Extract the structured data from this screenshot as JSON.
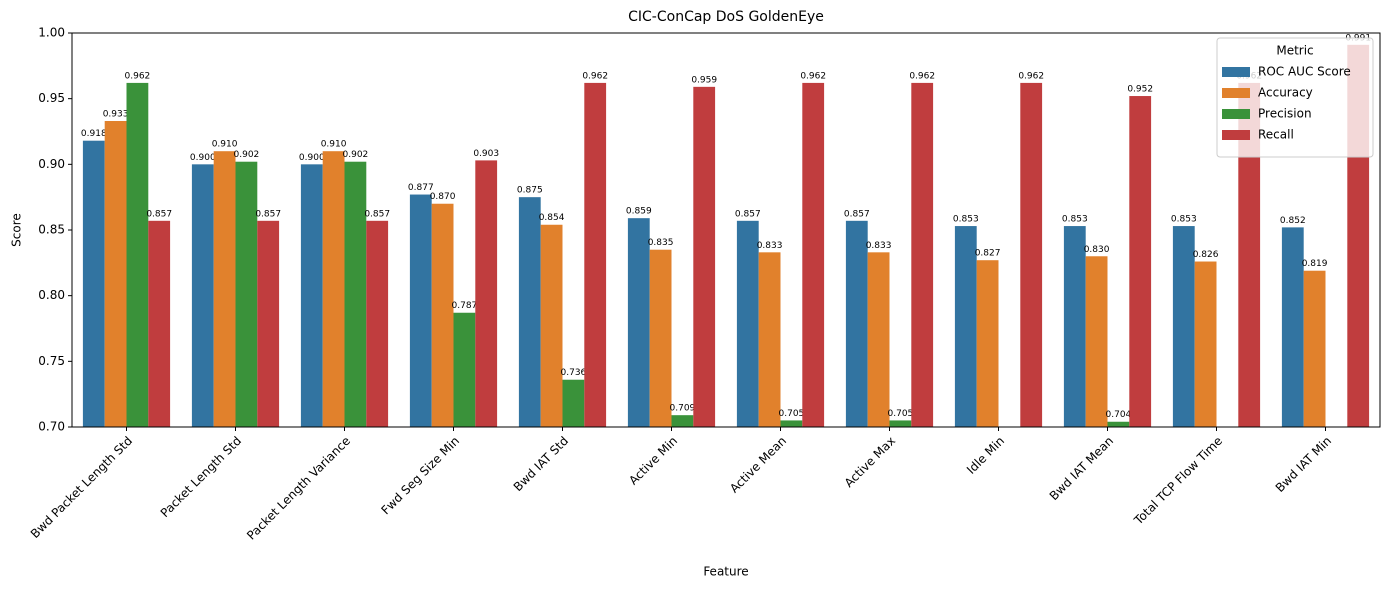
{
  "chart_data": {
    "type": "bar",
    "title": "CIC-ConCap DoS GoldenEye",
    "x_label": "Feature",
    "y_label": "Score",
    "legend_title": "Metric",
    "legend_position": "upper right",
    "categories": [
      "Bwd Packet Length Std",
      "Packet Length Std",
      "Packet Length Variance",
      "Fwd Seg Size Min",
      "Bwd IAT Std",
      "Active Min",
      "Active Mean",
      "Active Max",
      "Idle Min",
      "Bwd IAT Mean",
      "Total TCP Flow Time",
      "Bwd IAT Min"
    ],
    "series": [
      {
        "name": "ROC AUC Score",
        "color": "#3274a1",
        "values": [
          0.918,
          0.9,
          0.9,
          0.877,
          0.875,
          0.859,
          0.857,
          0.857,
          0.853,
          0.853,
          0.853,
          0.852
        ],
        "value_labels": [
          "0.918",
          "0.900",
          "0.900",
          "0.877",
          "0.875",
          "0.859",
          "0.857",
          "0.857",
          "0.853",
          "0.853",
          "0.853",
          "0.852"
        ]
      },
      {
        "name": "Accuracy",
        "color": "#e1812c",
        "values": [
          0.933,
          0.91,
          0.91,
          0.87,
          0.854,
          0.835,
          0.833,
          0.833,
          0.827,
          0.83,
          0.826,
          0.819
        ],
        "value_labels": [
          "0.933",
          "0.910",
          "0.910",
          "0.870",
          "0.854",
          "0.835",
          "0.833",
          "0.833",
          "0.827",
          "0.830",
          "0.826",
          "0.819"
        ]
      },
      {
        "name": "Precision",
        "color": "#3a923a",
        "values": [
          0.962,
          0.902,
          0.902,
          0.787,
          0.736,
          0.709,
          0.705,
          0.705,
          null,
          0.704,
          null,
          null
        ],
        "value_labels": [
          "0.962",
          "0.902",
          "0.902",
          "0.787",
          "0.736",
          "0.709",
          "0.705",
          "0.705",
          null,
          "0.704",
          null,
          null
        ]
      },
      {
        "name": "Recall",
        "color": "#c03d3e",
        "values": [
          0.857,
          0.857,
          0.857,
          0.903,
          0.962,
          0.959,
          0.962,
          0.962,
          0.962,
          0.952,
          0.962,
          0.991
        ],
        "value_labels": [
          "0.857",
          "0.857",
          "0.857",
          "0.903",
          "0.962",
          "0.959",
          "0.962",
          "0.962",
          "0.962",
          "0.952",
          "0.962",
          "0.991"
        ]
      }
    ],
    "ylim": [
      0.7,
      1.0
    ],
    "yticks": [
      {
        "value": 0.7,
        "label": "0.70"
      },
      0.75,
      {
        "value": 0.8,
        "label": "0.80"
      },
      0.85,
      {
        "value": 0.9,
        "label": "0.90"
      },
      0.95,
      {
        "value": 1.0,
        "label": "1.00"
      }
    ]
  }
}
